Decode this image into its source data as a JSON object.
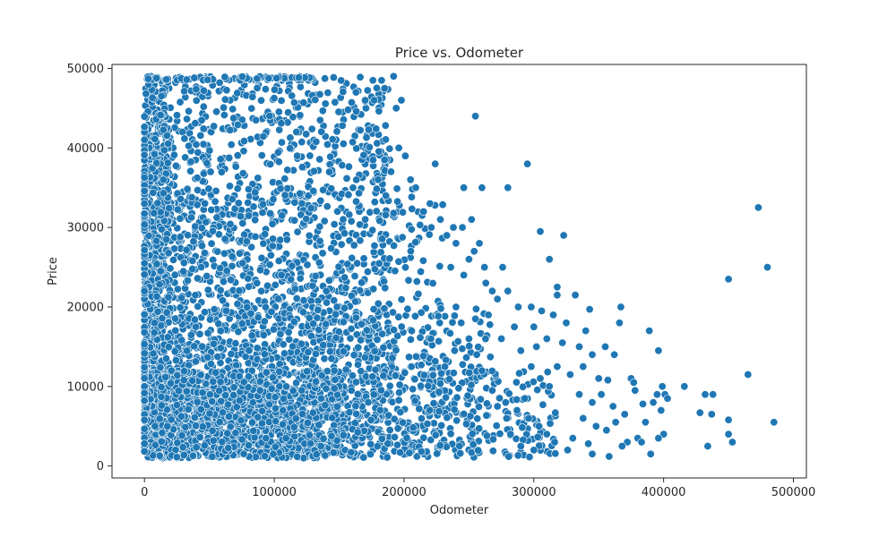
{
  "chart_data": {
    "type": "scatter",
    "title": "Price vs. Odometer",
    "xlabel": "Odometer",
    "ylabel": "Price",
    "xlim": [
      -25000,
      510000
    ],
    "ylim": [
      -1500,
      50500
    ],
    "grid": false,
    "legend": "none",
    "x_ticks": [
      0,
      100000,
      200000,
      300000,
      400000,
      500000
    ],
    "x_tick_labels": [
      "0",
      "100000",
      "200000",
      "300000",
      "400000",
      "500000"
    ],
    "y_ticks": [
      0,
      10000,
      20000,
      30000,
      40000,
      50000
    ],
    "y_tick_labels": [
      "0",
      "10000",
      "20000",
      "30000",
      "40000",
      "50000"
    ],
    "marker_color": "#1f77b4",
    "marker_edge": "#ffffff",
    "series": [
      {
        "points": [
          [
            255000,
            44000
          ],
          [
            224000,
            38000
          ],
          [
            295000,
            38000
          ],
          [
            246000,
            35000
          ],
          [
            260000,
            35000
          ],
          [
            280000,
            35000
          ],
          [
            305000,
            29500
          ],
          [
            323000,
            29000
          ],
          [
            312000,
            26000
          ],
          [
            250000,
            26000
          ],
          [
            254000,
            27000
          ],
          [
            258000,
            28000
          ],
          [
            262000,
            25000
          ],
          [
            276000,
            25000
          ],
          [
            268000,
            22000
          ],
          [
            280000,
            22000
          ],
          [
            318000,
            22500
          ],
          [
            318000,
            21500
          ],
          [
            332000,
            21500
          ],
          [
            288000,
            20000
          ],
          [
            298000,
            20000
          ],
          [
            306000,
            19500
          ],
          [
            315000,
            19000
          ],
          [
            343000,
            19700
          ],
          [
            367000,
            20000
          ],
          [
            366000,
            18000
          ],
          [
            389000,
            17000
          ],
          [
            396000,
            14500
          ],
          [
            375000,
            11000
          ],
          [
            377000,
            10500
          ],
          [
            399000,
            10000
          ],
          [
            401000,
            9000
          ],
          [
            403000,
            8500
          ],
          [
            416000,
            10000
          ],
          [
            428000,
            6700
          ],
          [
            432000,
            9000
          ],
          [
            438000,
            9000
          ],
          [
            437000,
            6500
          ],
          [
            450000,
            5800
          ],
          [
            450000,
            4000
          ],
          [
            453000,
            3000
          ],
          [
            434000,
            2500
          ],
          [
            400000,
            4000
          ],
          [
            390000,
            1500
          ],
          [
            396000,
            3500
          ],
          [
            380000,
            3500
          ],
          [
            383000,
            3000
          ],
          [
            372000,
            3000
          ],
          [
            473000,
            32500
          ],
          [
            480000,
            25000
          ],
          [
            450000,
            23500
          ],
          [
            465000,
            11500
          ],
          [
            485000,
            5500
          ],
          [
            345000,
            14000
          ],
          [
            355000,
            15000
          ],
          [
            362000,
            14000
          ],
          [
            338000,
            12500
          ],
          [
            350000,
            11000
          ],
          [
            357000,
            10800
          ],
          [
            335000,
            9000
          ],
          [
            345000,
            8000
          ],
          [
            352000,
            9000
          ],
          [
            361000,
            7500
          ],
          [
            370000,
            6500
          ],
          [
            338000,
            6000
          ],
          [
            348000,
            5000
          ],
          [
            356000,
            4500
          ],
          [
            363000,
            5500
          ],
          [
            368000,
            2500
          ],
          [
            358000,
            1200
          ],
          [
            330000,
            3500
          ],
          [
            326000,
            2000
          ],
          [
            342000,
            2800
          ],
          [
            345000,
            1500
          ],
          [
            398000,
            7000
          ],
          [
            392000,
            8000
          ],
          [
            384000,
            7800
          ],
          [
            386000,
            5500
          ],
          [
            378000,
            9500
          ],
          [
            395000,
            9000
          ],
          [
            340000,
            17000
          ],
          [
            325000,
            18000
          ],
          [
            310000,
            16000
          ],
          [
            302000,
            15000
          ],
          [
            300000,
            17500
          ],
          [
            322000,
            15500
          ],
          [
            335000,
            15000
          ],
          [
            328000,
            11500
          ],
          [
            318000,
            12500
          ],
          [
            275000,
            16000
          ],
          [
            285000,
            17500
          ],
          [
            290000,
            14500
          ],
          [
            298000,
            12500
          ],
          [
            305000,
            11000
          ],
          [
            312000,
            10000
          ],
          [
            265000,
            19000
          ],
          [
            272000,
            21000
          ],
          [
            263000,
            23000
          ],
          [
            245000,
            30000
          ],
          [
            252000,
            31000
          ],
          [
            238000,
            30000
          ],
          [
            233000,
            29000
          ],
          [
            228000,
            31000
          ],
          [
            221000,
            30000
          ],
          [
            240000,
            28000
          ],
          [
            246000,
            24000
          ],
          [
            236000,
            25000
          ],
          [
            220000,
            33000
          ],
          [
            215000,
            32000
          ],
          [
            209000,
            35000
          ],
          [
            205000,
            36000
          ],
          [
            201000,
            39000
          ],
          [
            196000,
            40000
          ],
          [
            192000,
            49000
          ],
          [
            194000,
            45000
          ],
          [
            198000,
            46000
          ],
          [
            185000,
            47500
          ],
          [
            177000,
            46000
          ],
          [
            170000,
            46000
          ],
          [
            176000,
            48500
          ],
          [
            163000,
            47000
          ],
          [
            185000,
            38500
          ],
          [
            190000,
            37000
          ],
          [
            180000,
            36000
          ],
          [
            186000,
            34000
          ],
          [
            293000,
            8500
          ],
          [
            287000,
            7000
          ],
          [
            296000,
            6000
          ],
          [
            304000,
            5000
          ],
          [
            310000,
            4000
          ],
          [
            316000,
            3000
          ],
          [
            300000,
            2000
          ],
          [
            290000,
            2500
          ],
          [
            282000,
            4000
          ],
          [
            279000,
            6000
          ],
          [
            272000,
            7500
          ],
          [
            268000,
            9500
          ],
          [
            260000,
            12000
          ],
          [
            256000,
            14000
          ],
          [
            250000,
            16000
          ],
          [
            244000,
            18000
          ],
          [
            240000,
            20000
          ],
          [
            255000,
            18500
          ]
        ]
      }
    ]
  }
}
